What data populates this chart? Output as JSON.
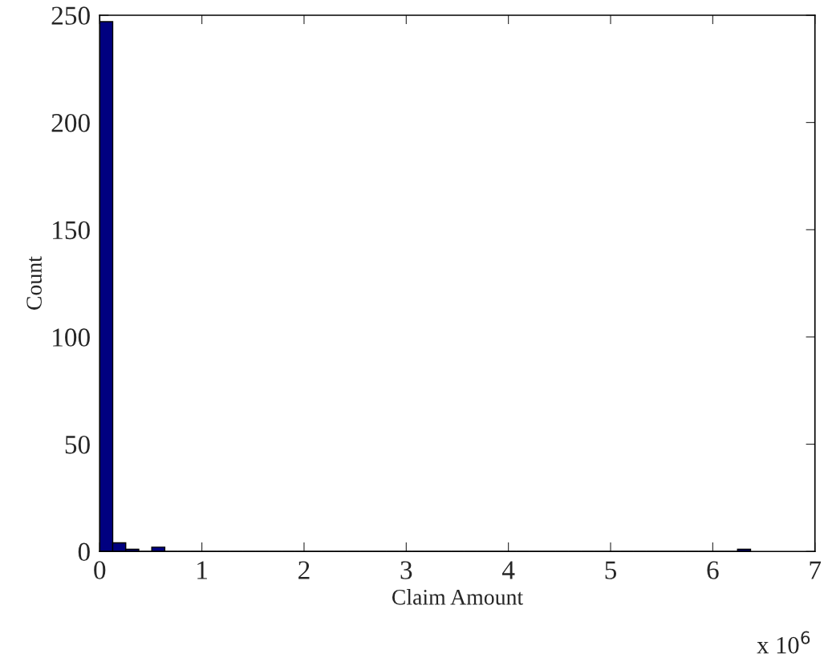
{
  "chart_data": {
    "type": "histogram",
    "xlabel": "Claim Amount",
    "ylabel": "Count",
    "bins": [
      0,
      0.1274,
      0.2548,
      0.3822,
      0.5096,
      0.637,
      0.7644,
      0.8918,
      1.0192,
      1.1466,
      1.274,
      1.4014,
      1.5288,
      1.6562,
      1.7836,
      1.911,
      2.0384,
      2.1658,
      2.2932,
      2.4206,
      2.548,
      2.6754,
      2.8028,
      2.9302,
      3.0576,
      3.185,
      3.3124,
      3.4398,
      3.5672,
      3.6946,
      3.822,
      3.9494,
      4.0768,
      4.2042,
      4.3316,
      4.459,
      4.5864,
      4.7138,
      4.8412,
      4.9686,
      5.096,
      5.2234,
      5.3508,
      5.4782,
      5.6056,
      5.733,
      5.8604,
      5.9878,
      6.1152,
      6.2426,
      6.37
    ],
    "values": [
      247,
      4,
      1,
      0,
      2,
      0,
      0,
      0,
      0,
      0,
      0,
      0,
      0,
      0,
      0,
      0,
      0,
      0,
      0,
      0,
      0,
      0,
      0,
      0,
      0,
      0,
      0,
      0,
      0,
      0,
      0,
      0,
      0,
      0,
      0,
      0,
      0,
      0,
      0,
      0,
      0,
      0,
      0,
      0,
      0,
      0,
      0,
      0,
      0,
      1
    ],
    "color": "#000080",
    "xlim": [
      0,
      7
    ],
    "xticks": [
      0,
      1,
      2,
      3,
      4,
      5,
      6,
      7
    ],
    "ylim": [
      0,
      250
    ],
    "yticks": [
      0,
      50,
      100,
      150,
      200,
      250
    ],
    "annotations": [
      "x 10$^{6}$"
    ],
    "grid": false
  }
}
